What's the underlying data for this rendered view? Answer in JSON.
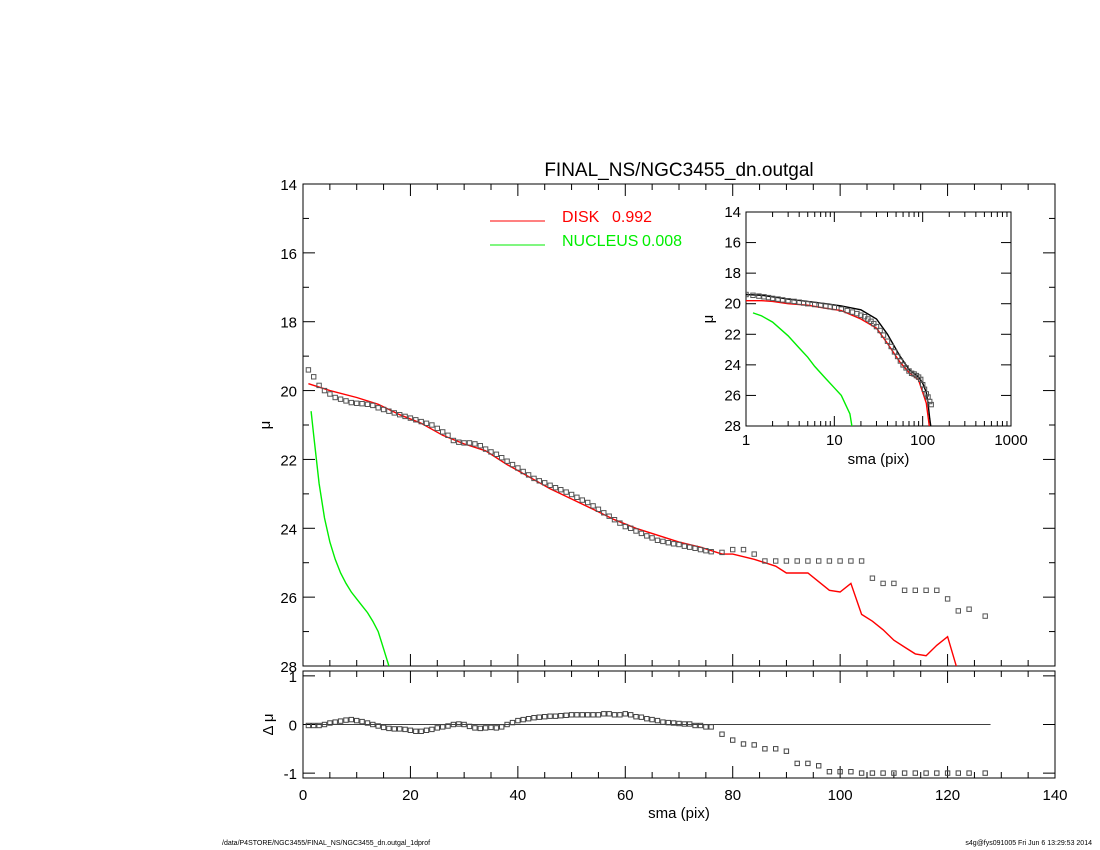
{
  "chart_data": [
    {
      "id": "main",
      "type": "scatter",
      "title": "FINAL_NS/NGC3455_dn.outgal",
      "xlabel": "",
      "ylabel": "μ",
      "xlim": [
        0,
        140
      ],
      "ylim": [
        28,
        14
      ],
      "y_inverted": true,
      "yticks": [
        14,
        16,
        18,
        20,
        22,
        24,
        26,
        28
      ],
      "legend": [
        {
          "label": "DISK",
          "value": "0.992",
          "color": "#ff0000"
        },
        {
          "label": "NUCLEUS",
          "value": "0.008",
          "color": "#00ee00"
        }
      ],
      "series": [
        {
          "name": "DISK",
          "kind": "line",
          "color": "#ff0000",
          "x": [
            1,
            5,
            10,
            14,
            18,
            22,
            26,
            30,
            34,
            38,
            42,
            46,
            50,
            54,
            58,
            62,
            66,
            70,
            74,
            78,
            80,
            84,
            86,
            88,
            90,
            94,
            96,
            98,
            100,
            102,
            104,
            106,
            108,
            110,
            112,
            114,
            116,
            118,
            120,
            122
          ],
          "y": [
            19.8,
            20.0,
            20.2,
            20.4,
            20.7,
            20.95,
            21.3,
            21.55,
            21.75,
            22.15,
            22.5,
            22.85,
            23.15,
            23.45,
            23.75,
            24.0,
            24.2,
            24.4,
            24.55,
            24.75,
            24.75,
            24.9,
            25.0,
            25.1,
            25.3,
            25.3,
            25.55,
            25.8,
            25.85,
            25.6,
            26.5,
            26.7,
            26.95,
            27.25,
            27.45,
            27.65,
            27.7,
            27.4,
            27.15,
            28.2
          ]
        },
        {
          "name": "NUCLEUS",
          "kind": "line",
          "color": "#00ee00",
          "x": [
            1.5,
            2,
            3,
            4,
            5,
            6,
            7,
            8,
            9,
            10,
            11,
            12,
            13,
            14,
            15,
            16,
            17
          ],
          "y": [
            20.6,
            21.3,
            22.7,
            23.7,
            24.4,
            24.9,
            25.3,
            25.6,
            25.85,
            26.05,
            26.25,
            26.45,
            26.7,
            27.0,
            27.5,
            28.0,
            28.6
          ]
        },
        {
          "name": "",
          "kind": "points",
          "color": "#555555",
          "x": [
            1,
            2,
            3,
            4,
            5,
            6,
            7,
            8,
            9,
            10,
            11,
            12,
            13,
            14,
            15,
            16,
            17,
            18,
            19,
            20,
            21,
            22,
            23,
            24,
            25,
            26,
            27,
            28,
            29,
            30,
            31,
            32,
            33,
            34,
            35,
            36,
            37,
            38,
            39,
            40,
            41,
            42,
            43,
            44,
            45,
            46,
            47,
            48,
            49,
            50,
            51,
            52,
            53,
            54,
            55,
            56,
            57,
            58,
            59,
            60,
            61,
            62,
            63,
            64,
            65,
            66,
            67,
            68,
            69,
            70,
            71,
            72,
            73,
            74,
            75,
            76,
            78,
            80,
            82,
            84,
            86,
            88,
            90,
            92,
            94,
            96,
            98,
            100,
            102,
            104,
            106,
            108,
            110,
            112,
            114,
            116,
            118,
            120,
            122,
            124,
            127
          ],
          "y": [
            19.4,
            19.6,
            19.85,
            20.0,
            20.1,
            20.2,
            20.25,
            20.3,
            20.35,
            20.37,
            20.38,
            20.4,
            20.43,
            20.5,
            20.55,
            20.6,
            20.65,
            20.7,
            20.75,
            20.8,
            20.85,
            20.9,
            20.95,
            21.0,
            21.1,
            21.2,
            21.3,
            21.45,
            21.5,
            21.52,
            21.52,
            21.55,
            21.6,
            21.7,
            21.78,
            21.85,
            21.95,
            22.05,
            22.15,
            22.25,
            22.35,
            22.45,
            22.55,
            22.62,
            22.68,
            22.75,
            22.82,
            22.88,
            22.95,
            23.02,
            23.1,
            23.18,
            23.25,
            23.35,
            23.45,
            23.55,
            23.65,
            23.75,
            23.85,
            23.95,
            24.0,
            24.08,
            24.15,
            24.22,
            24.28,
            24.35,
            24.38,
            24.42,
            24.45,
            24.47,
            24.52,
            24.55,
            24.58,
            24.62,
            24.65,
            24.68,
            24.7,
            24.62,
            24.62,
            24.75,
            24.95,
            24.95,
            24.95,
            24.95,
            24.95,
            24.95,
            24.95,
            24.95,
            24.95,
            24.95,
            25.45,
            25.6,
            25.6,
            25.8,
            25.8,
            25.8,
            25.8,
            26.05,
            26.4,
            26.35,
            26.55
          ]
        }
      ]
    },
    {
      "id": "residual",
      "type": "scatter",
      "title": "",
      "xlabel": "sma (pix)",
      "ylabel": "Δ μ",
      "xlim": [
        0,
        140
      ],
      "ylim": [
        -1.1,
        1.1
      ],
      "xticks": [
        0,
        20,
        40,
        60,
        80,
        100,
        120,
        140
      ],
      "yticks": [
        -1,
        0,
        1
      ],
      "zero_line": {
        "x": [
          1,
          128
        ],
        "y": 0
      },
      "series": [
        {
          "name": "",
          "kind": "points",
          "color": "#444444",
          "x": [
            1,
            2,
            3,
            4,
            5,
            6,
            7,
            8,
            9,
            10,
            11,
            12,
            13,
            14,
            15,
            16,
            17,
            18,
            19,
            20,
            21,
            22,
            23,
            24,
            25,
            26,
            27,
            28,
            29,
            30,
            31,
            32,
            33,
            34,
            35,
            36,
            37,
            38,
            39,
            40,
            41,
            42,
            43,
            44,
            45,
            46,
            47,
            48,
            49,
            50,
            51,
            52,
            53,
            54,
            55,
            56,
            57,
            58,
            59,
            60,
            61,
            62,
            63,
            64,
            65,
            66,
            67,
            68,
            69,
            70,
            71,
            72,
            73,
            74,
            75,
            76,
            78,
            80,
            82,
            84,
            86,
            88,
            90,
            92,
            94,
            96,
            98,
            100,
            102,
            104,
            106,
            108,
            110,
            112,
            114,
            116,
            118,
            120,
            122,
            124,
            127
          ],
          "y": [
            -0.02,
            -0.02,
            -0.02,
            0.0,
            0.03,
            0.05,
            0.07,
            0.09,
            0.1,
            0.08,
            0.06,
            0.03,
            0.0,
            -0.03,
            -0.06,
            -0.08,
            -0.09,
            -0.09,
            -0.1,
            -0.12,
            -0.14,
            -0.14,
            -0.12,
            -0.1,
            -0.07,
            -0.05,
            -0.03,
            0.0,
            0.01,
            0.0,
            -0.04,
            -0.07,
            -0.08,
            -0.07,
            -0.06,
            -0.07,
            -0.05,
            0.0,
            0.04,
            0.08,
            0.1,
            0.12,
            0.14,
            0.15,
            0.16,
            0.17,
            0.17,
            0.18,
            0.19,
            0.2,
            0.2,
            0.2,
            0.2,
            0.2,
            0.2,
            0.22,
            0.22,
            0.2,
            0.2,
            0.22,
            0.2,
            0.16,
            0.15,
            0.12,
            0.1,
            0.08,
            0.05,
            0.04,
            0.03,
            0.02,
            0.01,
            0.01,
            -0.02,
            -0.02,
            -0.05,
            -0.05,
            -0.2,
            -0.32,
            -0.4,
            -0.42,
            -0.5,
            -0.5,
            -0.55,
            -0.8,
            -0.8,
            -0.85,
            -0.97,
            -0.97,
            -0.97,
            -1.0,
            -1.0,
            -1.0,
            -1.0,
            -1.0,
            -1.0,
            -1.0,
            -1.0,
            -1.0,
            -1.0,
            -1.0,
            -1.0
          ]
        }
      ]
    },
    {
      "id": "inset",
      "type": "scatter",
      "title": "",
      "xlabel": "sma (pix)",
      "ylabel": "μ",
      "x_scale": "log",
      "xlim": [
        1,
        1000
      ],
      "ylim": [
        28,
        14
      ],
      "y_inverted": true,
      "xticks": [
        1,
        10,
        100,
        1000
      ],
      "yticks": [
        14,
        16,
        18,
        20,
        22,
        24,
        26,
        28
      ],
      "series": [
        {
          "name": "DISK",
          "kind": "line",
          "color": "#ff0000",
          "x": [
            1,
            1.5,
            2,
            3,
            5,
            8,
            12,
            20,
            30,
            40,
            55,
            70,
            90,
            110,
            120
          ],
          "y": [
            19.8,
            19.8,
            19.85,
            20.0,
            20.1,
            20.3,
            20.45,
            21.0,
            21.6,
            22.6,
            23.8,
            24.5,
            25.0,
            26.5,
            28.2
          ]
        },
        {
          "name": "NUCLEUS",
          "kind": "line",
          "color": "#00ee00",
          "x": [
            1.2,
            1.5,
            2,
            3,
            4,
            5,
            6,
            8,
            10,
            12,
            15,
            16
          ],
          "y": [
            20.6,
            20.8,
            21.2,
            22.1,
            22.9,
            23.5,
            24.1,
            24.9,
            25.5,
            26.0,
            27.2,
            28.2
          ]
        },
        {
          "name": "",
          "kind": "line",
          "color": "#000000",
          "x": [
            1,
            1.5,
            2,
            3,
            5,
            8,
            12,
            20,
            30,
            40,
            55,
            70,
            90,
            100,
            110,
            115,
            120,
            125
          ],
          "y": [
            19.4,
            19.45,
            19.55,
            19.7,
            19.85,
            20.0,
            20.15,
            20.4,
            21.0,
            22.0,
            23.4,
            24.3,
            24.8,
            25.2,
            25.8,
            26.5,
            27.5,
            28.2
          ]
        },
        {
          "name": "",
          "kind": "points",
          "color": "#555555",
          "x": [
            1,
            1.2,
            1.4,
            1.6,
            1.8,
            2,
            2.3,
            2.6,
            3,
            3.5,
            4,
            4.5,
            5,
            6,
            7,
            8,
            9,
            10,
            12,
            14,
            16,
            18,
            20,
            22,
            24,
            26,
            28,
            30,
            33,
            36,
            40,
            44,
            48,
            52,
            56,
            60,
            65,
            70,
            75,
            80,
            85,
            90,
            95,
            100,
            105,
            110,
            115,
            120,
            125
          ],
          "y": [
            19.4,
            19.45,
            19.5,
            19.55,
            19.6,
            19.65,
            19.7,
            19.75,
            19.8,
            19.85,
            19.9,
            19.95,
            20.0,
            20.05,
            20.1,
            20.15,
            20.2,
            20.25,
            20.35,
            20.45,
            20.55,
            20.65,
            20.75,
            20.85,
            21.0,
            21.15,
            21.3,
            21.5,
            21.75,
            22.05,
            22.45,
            22.8,
            23.15,
            23.45,
            23.75,
            24.0,
            24.2,
            24.4,
            24.55,
            24.6,
            24.7,
            24.8,
            24.95,
            25.3,
            25.6,
            25.9,
            26.1,
            26.4,
            26.6
          ]
        }
      ]
    }
  ],
  "footer": {
    "left": "/data/P4STORE/NGC3455/FINAL_NS/NGC3455_dn.outgal_1dprof",
    "right": "s4g@fys091005  Fri Jun  6 13:29:53 2014"
  }
}
